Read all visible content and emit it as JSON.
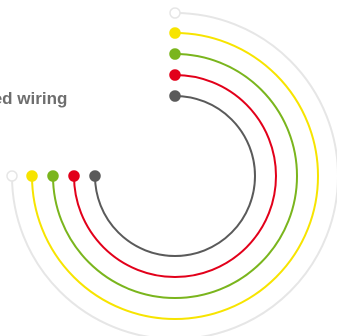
{
  "label": "led wiring",
  "colors": {
    "label": "#6e6e6e",
    "background": "#ffffff"
  },
  "wires": [
    {
      "name": "outer-white",
      "color": "#e6e6e6",
      "terminal_fill": "#ffffff"
    },
    {
      "name": "yellow",
      "color": "#f7e400",
      "terminal_fill": "#f7e400"
    },
    {
      "name": "green",
      "color": "#7ab51d",
      "terminal_fill": "#7ab51d"
    },
    {
      "name": "red",
      "color": "#e2001a",
      "terminal_fill": "#e2001a"
    },
    {
      "name": "gray",
      "color": "#5a5a5a",
      "terminal_fill": "#5a5a5a"
    }
  ]
}
